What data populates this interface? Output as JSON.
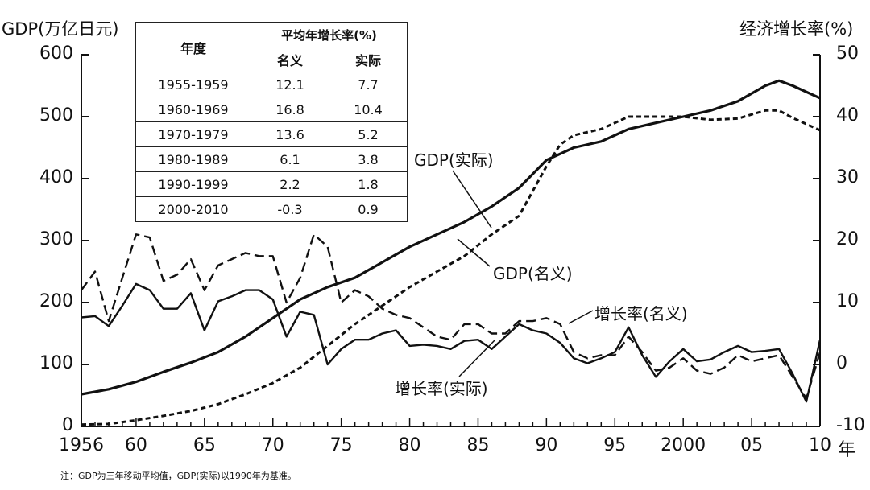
{
  "chart_data": {
    "type": "line",
    "left_axis_title": "GDP(万亿日元)",
    "right_axis_title": "经济增长率(%)",
    "left_ylim": [
      0,
      600
    ],
    "right_ylim": [
      -10,
      50
    ],
    "left_ticks": [
      "600",
      "500",
      "400",
      "300",
      "200",
      "100",
      "0"
    ],
    "right_ticks": [
      "50",
      "40",
      "30",
      "20",
      "10",
      "0",
      "-10"
    ],
    "x_ticks": [
      {
        "year": 1956,
        "label": "1956"
      },
      {
        "year": 1960,
        "label": "60"
      },
      {
        "year": 1965,
        "label": "65"
      },
      {
        "year": 1970,
        "label": "70"
      },
      {
        "year": 1975,
        "label": "75"
      },
      {
        "year": 1980,
        "label": "80"
      },
      {
        "year": 1985,
        "label": "85"
      },
      {
        "year": 1990,
        "label": "90"
      },
      {
        "year": 1995,
        "label": "95"
      },
      {
        "year": 2000,
        "label": "2000"
      },
      {
        "year": 2005,
        "label": "05"
      },
      {
        "year": 2010,
        "label": "10"
      }
    ],
    "x_unit": "年",
    "xlim": [
      1956,
      2010
    ],
    "series": [
      {
        "name": "GDP(实际)",
        "axis": "left",
        "style": "solid-thick",
        "x": [
          1956,
          1958,
          1960,
          1962,
          1964,
          1966,
          1968,
          1970,
          1972,
          1974,
          1976,
          1978,
          1980,
          1982,
          1984,
          1986,
          1988,
          1990,
          1992,
          1994,
          1996,
          1998,
          2000,
          2002,
          2004,
          2006,
          2007,
          2008,
          2010
        ],
        "y": [
          52,
          60,
          72,
          88,
          103,
          120,
          145,
          175,
          205,
          225,
          240,
          265,
          290,
          310,
          330,
          355,
          385,
          430,
          450,
          460,
          480,
          490,
          500,
          510,
          525,
          550,
          558,
          550,
          530
        ]
      },
      {
        "name": "GDP(名义)",
        "axis": "left",
        "style": "dotted",
        "x": [
          1956,
          1958,
          1960,
          1962,
          1964,
          1966,
          1968,
          1970,
          1972,
          1974,
          1976,
          1978,
          1980,
          1982,
          1984,
          1986,
          1988,
          1990,
          1991,
          1992,
          1994,
          1996,
          1998,
          2000,
          2002,
          2004,
          2006,
          2007,
          2008,
          2010
        ],
        "y": [
          3,
          4,
          10,
          17,
          25,
          36,
          52,
          70,
          95,
          130,
          165,
          195,
          225,
          250,
          275,
          310,
          340,
          420,
          455,
          470,
          480,
          500,
          500,
          500,
          495,
          497,
          510,
          510,
          498,
          478
        ]
      },
      {
        "name": "增长率(实际)",
        "axis": "right",
        "style": "solid",
        "x": [
          1956,
          1957,
          1958,
          1959,
          1960,
          1961,
          1962,
          1963,
          1964,
          1965,
          1966,
          1967,
          1968,
          1969,
          1970,
          1971,
          1972,
          1973,
          1974,
          1975,
          1976,
          1977,
          1978,
          1979,
          1980,
          1981,
          1982,
          1983,
          1984,
          1985,
          1986,
          1987,
          1988,
          1989,
          1990,
          1991,
          1992,
          1993,
          1994,
          1995,
          1996,
          1997,
          1998,
          1999,
          2000,
          2001,
          2002,
          2003,
          2004,
          2005,
          2006,
          2007,
          2008,
          2009,
          2010
        ],
        "y": [
          7.6,
          7.8,
          6.2,
          9.5,
          13.0,
          12.0,
          9.0,
          9.0,
          11.5,
          5.5,
          10.2,
          11.0,
          12.0,
          12.0,
          10.5,
          4.5,
          8.5,
          8.0,
          0.0,
          2.5,
          4.0,
          4.0,
          5.0,
          5.5,
          3.0,
          3.2,
          3.0,
          2.5,
          3.8,
          4.0,
          2.5,
          4.5,
          6.5,
          5.5,
          5.0,
          3.5,
          1.0,
          0.2,
          1.0,
          2.0,
          6.0,
          1.5,
          -2.0,
          0.5,
          2.5,
          0.5,
          0.8,
          2.0,
          3.0,
          2.0,
          2.2,
          2.5,
          -1.5,
          -6.0,
          4.0
        ]
      },
      {
        "name": "增长率(名义)",
        "axis": "right",
        "style": "dashed",
        "x": [
          1956,
          1957,
          1958,
          1959,
          1960,
          1961,
          1962,
          1963,
          1964,
          1965,
          1966,
          1967,
          1968,
          1969,
          1970,
          1971,
          1972,
          1973,
          1974,
          1975,
          1976,
          1977,
          1978,
          1979,
          1980,
          1981,
          1982,
          1983,
          1984,
          1985,
          1986,
          1987,
          1988,
          1989,
          1990,
          1991,
          1992,
          1993,
          1994,
          1995,
          1996,
          1997,
          1998,
          1999,
          2000,
          2001,
          2002,
          2003,
          2004,
          2005,
          2006,
          2007,
          2008,
          2009,
          2010
        ],
        "y": [
          12.0,
          15.0,
          7.0,
          14.0,
          21.0,
          20.5,
          13.5,
          14.5,
          17.0,
          12.0,
          16.0,
          17.0,
          18.0,
          17.5,
          17.5,
          10.0,
          14.0,
          21.0,
          19.0,
          10.0,
          12.0,
          11.0,
          9.0,
          8.0,
          7.5,
          6.0,
          4.5,
          4.0,
          6.5,
          6.5,
          5.0,
          5.0,
          7.0,
          7.0,
          7.5,
          6.5,
          2.0,
          1.0,
          1.5,
          1.5,
          4.5,
          2.0,
          -1.0,
          -0.5,
          1.0,
          -1.0,
          -1.5,
          -0.5,
          1.5,
          0.5,
          1.0,
          1.5,
          -2.0,
          -5.5,
          2.0
        ]
      }
    ],
    "labels": [
      {
        "text": "GDP(实际)",
        "target": "GDP(实际)"
      },
      {
        "text": "GDP(名义)",
        "target": "GDP(名义)"
      },
      {
        "text": "增长率(名义)",
        "target": "增长率(名义)"
      },
      {
        "text": "增长率(实际)",
        "target": "增长率(实际)"
      }
    ],
    "inset_table": {
      "header_col": "年度",
      "header_group": "平均年增长率(%)",
      "sub_headers": [
        "名义",
        "实际"
      ],
      "rows": [
        [
          "1955-1959",
          "12.1",
          "7.7"
        ],
        [
          "1960-1969",
          "16.8",
          "10.4"
        ],
        [
          "1970-1979",
          "13.6",
          "5.2"
        ],
        [
          "1980-1989",
          "6.1",
          "3.8"
        ],
        [
          "1990-1999",
          "2.2",
          "1.8"
        ],
        [
          "2000-2010",
          "-0.3",
          "0.9"
        ]
      ]
    },
    "note": "注：GDP为三年移动平均值，GDP(实际)以1990年为基准。",
    "colors": {
      "ink": "#111111",
      "background": "#ffffff"
    }
  }
}
